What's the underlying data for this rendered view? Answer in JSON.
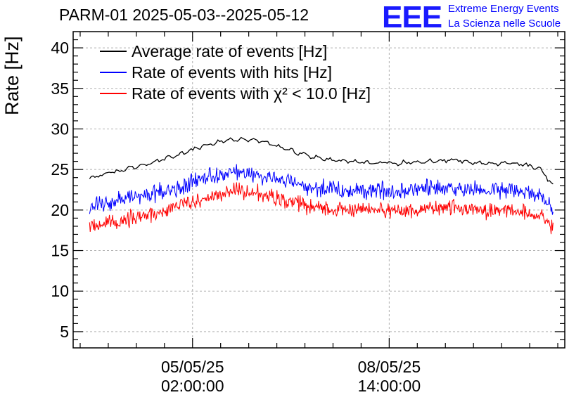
{
  "header": {
    "title": "PARM-01 2025-05-03--2025-05-12",
    "logo_text": "EEE",
    "logo_line1": "Extreme Energy Events",
    "logo_line2": "La Scienza nelle Scuole"
  },
  "colors": {
    "average": "#000000",
    "hits": "#0000ff",
    "chi2": "#ff0000",
    "logo": "#1a1aff",
    "grid": "#b0b0b0"
  },
  "chart_data": {
    "type": "line",
    "title": "PARM-01 2025-05-03--2025-05-12",
    "ylabel": "Rate [Hz]",
    "xlabel": "",
    "ylim": [
      3,
      42
    ],
    "yticks": [
      5,
      10,
      15,
      20,
      25,
      30,
      35,
      40
    ],
    "ytick_labels": [
      "5",
      "10",
      "15",
      "20",
      "25",
      "30",
      "35",
      "40"
    ],
    "xlim": [
      "2025-05-02 23:00",
      "2025-05-11 17:00"
    ],
    "xticks": [
      {
        "x": "2025-05-05 02:00",
        "date_label": "05/05/25",
        "time_label": "02:00:00"
      },
      {
        "x": "2025-05-08 14:00",
        "date_label": "08/05/25",
        "time_label": "14:00:00"
      }
    ],
    "grid": true,
    "legend_position": "top-left",
    "series": [
      {
        "name": "Average rate of events [Hz]",
        "color": "#000000",
        "noise": 0.0,
        "x": [
          "2025-05-03 06:00",
          "2025-05-03 18:00",
          "2025-05-04 06:00",
          "2025-05-04 18:00",
          "2025-05-05 06:00",
          "2025-05-05 18:00",
          "2025-05-06 06:00",
          "2025-05-06 18:00",
          "2025-05-07 06:00",
          "2025-05-07 18:00",
          "2025-05-08 06:00",
          "2025-05-08 18:00",
          "2025-05-09 06:00",
          "2025-05-09 18:00",
          "2025-05-10 06:00",
          "2025-05-10 18:00",
          "2025-05-11 06:00",
          "2025-05-11 12:00"
        ],
        "y": [
          24.0,
          24.8,
          25.6,
          26.6,
          27.9,
          28.7,
          28.6,
          27.5,
          26.5,
          26.1,
          25.8,
          25.8,
          26.0,
          26.2,
          25.7,
          25.8,
          25.2,
          23.0
        ]
      },
      {
        "name": "Rate of events with hits [Hz]",
        "color": "#0000ff",
        "noise": 1.3,
        "x": [
          "2025-05-03 06:00",
          "2025-05-03 18:00",
          "2025-05-04 06:00",
          "2025-05-04 18:00",
          "2025-05-05 06:00",
          "2025-05-05 18:00",
          "2025-05-06 06:00",
          "2025-05-06 18:00",
          "2025-05-07 06:00",
          "2025-05-07 18:00",
          "2025-05-08 06:00",
          "2025-05-08 18:00",
          "2025-05-09 06:00",
          "2025-05-09 18:00",
          "2025-05-10 06:00",
          "2025-05-10 18:00",
          "2025-05-11 06:00",
          "2025-05-11 12:00"
        ],
        "y": [
          20.5,
          21.2,
          21.8,
          22.6,
          23.8,
          24.6,
          24.4,
          23.5,
          22.8,
          22.5,
          22.4,
          22.4,
          22.7,
          22.8,
          22.3,
          22.4,
          21.8,
          20.5
        ]
      },
      {
        "name": "Rate of events with χ² < 10.0 [Hz]",
        "color": "#ff0000",
        "noise": 1.2,
        "x": [
          "2025-05-03 06:00",
          "2025-05-03 18:00",
          "2025-05-04 06:00",
          "2025-05-04 18:00",
          "2025-05-05 06:00",
          "2025-05-05 18:00",
          "2025-05-06 06:00",
          "2025-05-06 18:00",
          "2025-05-07 06:00",
          "2025-05-07 18:00",
          "2025-05-08 06:00",
          "2025-05-08 18:00",
          "2025-05-09 06:00",
          "2025-05-09 18:00",
          "2025-05-10 06:00",
          "2025-05-10 18:00",
          "2025-05-11 06:00",
          "2025-05-11 12:00"
        ],
        "y": [
          18.0,
          18.6,
          19.3,
          20.2,
          21.3,
          22.3,
          22.1,
          21.1,
          20.2,
          19.9,
          19.9,
          19.9,
          20.2,
          20.4,
          19.9,
          20.0,
          19.4,
          18.0
        ]
      }
    ]
  }
}
